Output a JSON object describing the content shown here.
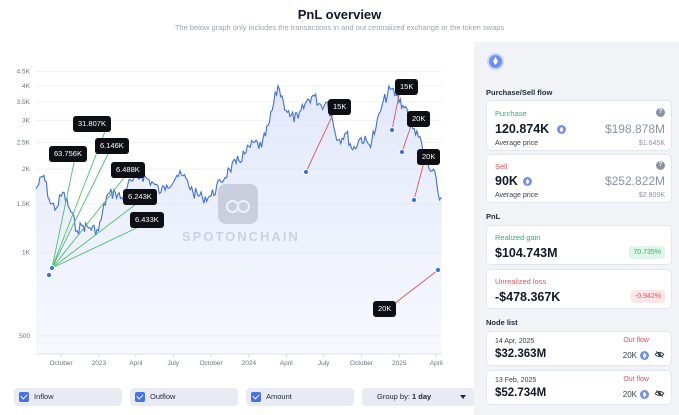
{
  "header": {
    "title": "PnL overview",
    "subtitle": "The below graph only includes the transactions in and out centralized exchange or the token swaps"
  },
  "chart_data": {
    "type": "line",
    "title": "",
    "xlabel": "",
    "ylabel": "",
    "y_scale": "log",
    "ylim": [
      430,
      5300
    ],
    "y_ticks": [
      "4.5K",
      "4K",
      "3.5K",
      "3K",
      "2.5K",
      "2K",
      "1.5K",
      "1K",
      "500"
    ],
    "y_tick_values": [
      4500,
      4000,
      3500,
      3000,
      2500,
      2000,
      1500,
      1000,
      500
    ],
    "x_ticks": [
      "October",
      "2023",
      "April",
      "July",
      "October",
      "2024",
      "April",
      "July",
      "October",
      "2025",
      "April"
    ],
    "x_tick_dates": [
      "2022-10-01",
      "2023-01-01",
      "2023-04-01",
      "2023-07-01",
      "2023-10-01",
      "2024-01-01",
      "2024-04-01",
      "2024-07-01",
      "2024-10-01",
      "2025-01-01",
      "2025-04-01"
    ],
    "x_range": [
      "2022-08-01",
      "2025-04-15"
    ],
    "grid": true,
    "line_color": "#3f6fe0",
    "fill_color": "#dfe6fb",
    "series": [
      {
        "x": [
          "2022-08-01",
          "2022-08-20",
          "2022-09-05",
          "2022-09-20",
          "2022-10-05",
          "2022-10-25",
          "2022-11-09",
          "2022-11-20",
          "2022-12-10",
          "2022-12-31",
          "2023-01-20",
          "2023-02-10",
          "2023-03-01",
          "2023-03-12",
          "2023-03-25",
          "2023-04-15",
          "2023-05-10",
          "2023-06-01",
          "2023-06-15",
          "2023-07-10",
          "2023-08-01",
          "2023-08-18",
          "2023-09-10",
          "2023-10-01",
          "2023-10-25",
          "2023-11-15",
          "2023-12-01",
          "2023-12-25",
          "2024-01-15",
          "2024-02-01",
          "2024-02-20",
          "2024-03-12",
          "2024-03-25",
          "2024-04-10",
          "2024-04-30",
          "2024-05-20",
          "2024-06-05",
          "2024-06-25",
          "2024-07-10",
          "2024-08-05",
          "2024-08-25",
          "2024-09-10",
          "2024-09-30",
          "2024-10-20",
          "2024-11-05",
          "2024-11-20",
          "2024-12-10",
          "2024-12-25",
          "2025-01-10",
          "2025-01-20",
          "2025-02-03",
          "2025-02-13",
          "2025-02-28",
          "2025-03-15",
          "2025-04-01",
          "2025-04-09",
          "2025-04-14"
        ],
        "values": [
          1700,
          1900,
          1500,
          1450,
          1650,
          1400,
          1200,
          1250,
          1230,
          1200,
          1600,
          1650,
          1550,
          1750,
          1820,
          1900,
          1800,
          1650,
          1750,
          1900,
          1850,
          1650,
          1580,
          1600,
          1800,
          2000,
          2100,
          2300,
          2500,
          2400,
          2950,
          4000,
          3500,
          3100,
          3050,
          3500,
          3700,
          3400,
          3500,
          2550,
          2700,
          2350,
          2600,
          2450,
          2800,
          3400,
          3900,
          3700,
          3400,
          3300,
          2800,
          2750,
          2300,
          2000,
          1850,
          1550,
          1580
        ]
      }
    ],
    "annotations": [
      "63.756K",
      "31.807K",
      "6.146K",
      "6.488K",
      "6.243K",
      "6.433K",
      "15K",
      "15K",
      "20K",
      "20K",
      "20K"
    ]
  },
  "callouts": [
    {
      "label": "31.807K",
      "date": "2022-09-10"
    },
    {
      "label": "63.756K",
      "date": "2022-09-10"
    },
    {
      "label": "6.146K",
      "date": "2022-09-10"
    },
    {
      "label": "6.488K",
      "date": "2022-09-10"
    },
    {
      "label": "6.243K",
      "date": "2022-09-10"
    },
    {
      "label": "6.433K",
      "date": "2022-09-10"
    },
    {
      "label": "15K",
      "date": "2024-06-05"
    },
    {
      "label": "15K",
      "date": "2024-12-10"
    },
    {
      "label": "20K",
      "date": "2025-01-20"
    },
    {
      "label": "20K",
      "date": "2025-02-13"
    },
    {
      "label": "20K",
      "date": "2025-04-14"
    }
  ],
  "watermark": "SPOTONCHAIN",
  "filters": {
    "inflow": "Inflow",
    "outflow": "Outflow",
    "amount": "Amount",
    "group_by_label": "Group by:",
    "group_by_value": "1 day"
  },
  "panel": {
    "purchase_sell_title": "Purchase/Sell flow",
    "purchase": {
      "label": "Purchase",
      "amount": "120.874K",
      "usd": "$198.878M",
      "avg_label": "Average price",
      "avg_value": "$1.645K"
    },
    "sell": {
      "label": "Sell",
      "amount": "90K",
      "usd": "$252.822M",
      "avg_label": "Average price",
      "avg_value": "$2.809K"
    },
    "pnl_title": "PnL",
    "realized": {
      "label": "Realized gain",
      "value": "$104.743M",
      "pct": "70.735%"
    },
    "unrealized": {
      "label": "Unrealized loss",
      "value": "-$478.367K",
      "pct": "-0.942%"
    },
    "node_title": "Node list",
    "nodes": [
      {
        "date": "14 Apr, 2025",
        "value": "$32.363M",
        "flow": "Out flow",
        "amount": "20K"
      },
      {
        "date": "13 Feb, 2025",
        "value": "$52.734M",
        "flow": "Out flow",
        "amount": "20K"
      }
    ]
  },
  "colors": {
    "line": "#3f6fe0",
    "green": "#2db36b",
    "red": "#e2545b",
    "accent": "#4a72e8"
  },
  "icons": {
    "token": "eth-icon",
    "help": "help-icon",
    "visibility": "eye-off-icon"
  }
}
